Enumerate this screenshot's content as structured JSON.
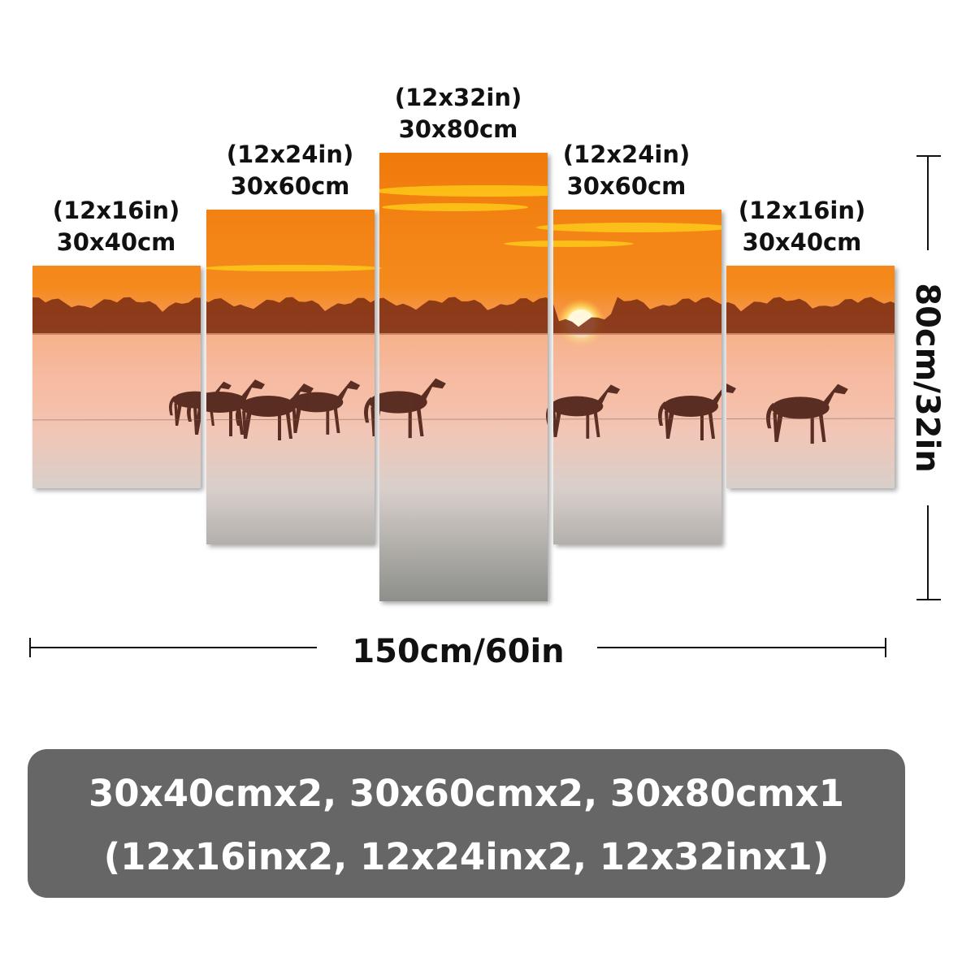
{
  "panels": [
    {
      "inches": "(12x16in)",
      "cm": "30x40cm"
    },
    {
      "inches": "(12x24in)",
      "cm": "30x60cm"
    },
    {
      "inches": "(12x32in)",
      "cm": "30x80cm"
    },
    {
      "inches": "(12x24in)",
      "cm": "30x60cm"
    },
    {
      "inches": "(12x16in)",
      "cm": "30x40cm"
    }
  ],
  "width_label": "150cm/60in",
  "height_label": "80cm/32in",
  "summary": {
    "line1": "30x40cmx2, 30x60cmx2, 30x80cmx1",
    "line2": "(12x16inx2, 12x24inx2, 12x32inx1)"
  }
}
